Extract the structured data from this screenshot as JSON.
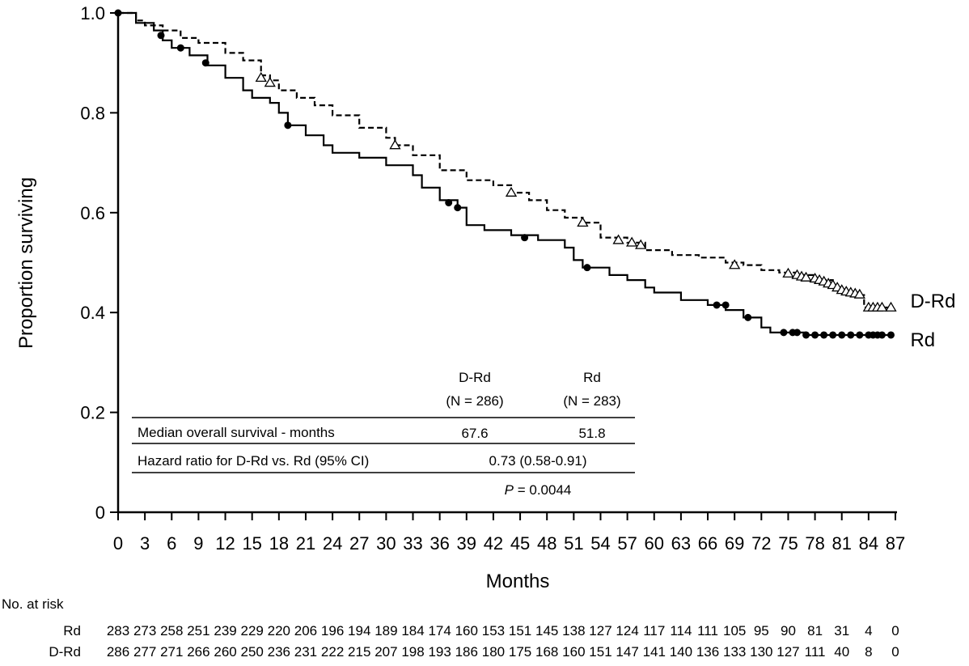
{
  "chart_data": {
    "type": "line",
    "subtype": "kaplan-meier",
    "ylabel": "Proportion surviving",
    "xlabel": "Months",
    "xlim": [
      0,
      87
    ],
    "ylim": [
      0,
      1.0
    ],
    "xticks": [
      "0",
      "3",
      "6",
      "9",
      "12",
      "15",
      "18",
      "21",
      "24",
      "27",
      "30",
      "33",
      "36",
      "39",
      "42",
      "45",
      "48",
      "51",
      "54",
      "57",
      "60",
      "63",
      "66",
      "69",
      "72",
      "75",
      "78",
      "81",
      "84",
      "87"
    ],
    "yticks": [
      "0",
      "0.2",
      "0.4",
      "0.6",
      "0.8",
      "1.0"
    ],
    "grid": false,
    "legend": "inline-right",
    "series": [
      {
        "name": "D-Rd",
        "style": "dashed",
        "marker": "open-triangle",
        "points": [
          [
            0,
            1.0
          ],
          [
            2,
            0.985
          ],
          [
            3,
            0.975
          ],
          [
            5,
            0.965
          ],
          [
            7,
            0.95
          ],
          [
            9,
            0.94
          ],
          [
            12,
            0.92
          ],
          [
            14,
            0.905
          ],
          [
            16,
            0.875
          ],
          [
            17,
            0.865
          ],
          [
            18,
            0.845
          ],
          [
            20,
            0.83
          ],
          [
            22,
            0.815
          ],
          [
            24,
            0.795
          ],
          [
            27,
            0.77
          ],
          [
            30,
            0.75
          ],
          [
            31,
            0.735
          ],
          [
            33,
            0.715
          ],
          [
            36,
            0.685
          ],
          [
            39,
            0.665
          ],
          [
            42,
            0.655
          ],
          [
            44,
            0.64
          ],
          [
            46,
            0.625
          ],
          [
            48,
            0.605
          ],
          [
            50,
            0.59
          ],
          [
            52,
            0.58
          ],
          [
            54,
            0.55
          ],
          [
            57,
            0.54
          ],
          [
            59,
            0.525
          ],
          [
            62,
            0.515
          ],
          [
            65,
            0.51
          ],
          [
            68,
            0.5
          ],
          [
            70,
            0.495
          ],
          [
            72,
            0.485
          ],
          [
            74,
            0.48
          ],
          [
            76,
            0.475
          ],
          [
            78,
            0.465
          ],
          [
            80,
            0.45
          ],
          [
            81,
            0.44
          ],
          [
            83,
            0.435
          ],
          [
            83.5,
            0.41
          ],
          [
            86.5,
            0.41
          ]
        ],
        "censored": [
          [
            16,
            0.87
          ],
          [
            17,
            0.86
          ],
          [
            31,
            0.735
          ],
          [
            44,
            0.64
          ],
          [
            52,
            0.58
          ],
          [
            56,
            0.545
          ],
          [
            57.5,
            0.54
          ],
          [
            58.5,
            0.535
          ],
          [
            69,
            0.495
          ],
          [
            75,
            0.478
          ],
          [
            76,
            0.475
          ],
          [
            76.5,
            0.472
          ],
          [
            77,
            0.47
          ],
          [
            78,
            0.468
          ],
          [
            78.5,
            0.465
          ],
          [
            79,
            0.462
          ],
          [
            79.5,
            0.458
          ],
          [
            80,
            0.455
          ],
          [
            80.5,
            0.45
          ],
          [
            81,
            0.445
          ],
          [
            81.5,
            0.442
          ],
          [
            82,
            0.44
          ],
          [
            82.5,
            0.438
          ],
          [
            83,
            0.436
          ],
          [
            84,
            0.41
          ],
          [
            84.5,
            0.41
          ],
          [
            85,
            0.41
          ],
          [
            85.5,
            0.41
          ],
          [
            86.5,
            0.41
          ]
        ]
      },
      {
        "name": "Rd",
        "style": "solid",
        "marker": "filled-circle",
        "points": [
          [
            0,
            1.0
          ],
          [
            2,
            0.98
          ],
          [
            4,
            0.965
          ],
          [
            5,
            0.945
          ],
          [
            6,
            0.93
          ],
          [
            8,
            0.915
          ],
          [
            10,
            0.895
          ],
          [
            12,
            0.87
          ],
          [
            14,
            0.845
          ],
          [
            15,
            0.83
          ],
          [
            17,
            0.82
          ],
          [
            18,
            0.8
          ],
          [
            19,
            0.775
          ],
          [
            21,
            0.755
          ],
          [
            23,
            0.735
          ],
          [
            24,
            0.72
          ],
          [
            27,
            0.71
          ],
          [
            30,
            0.695
          ],
          [
            33,
            0.675
          ],
          [
            34,
            0.65
          ],
          [
            36,
            0.625
          ],
          [
            38,
            0.61
          ],
          [
            39,
            0.575
          ],
          [
            41,
            0.565
          ],
          [
            44,
            0.555
          ],
          [
            47,
            0.545
          ],
          [
            50,
            0.53
          ],
          [
            51,
            0.505
          ],
          [
            52,
            0.49
          ],
          [
            55,
            0.475
          ],
          [
            57,
            0.465
          ],
          [
            59,
            0.45
          ],
          [
            60,
            0.44
          ],
          [
            63,
            0.425
          ],
          [
            66,
            0.415
          ],
          [
            68,
            0.405
          ],
          [
            70,
            0.39
          ],
          [
            72,
            0.37
          ],
          [
            73,
            0.36
          ],
          [
            77,
            0.355
          ],
          [
            86.5,
            0.355
          ]
        ],
        "censored": [
          [
            0,
            1.0
          ],
          [
            4.8,
            0.955
          ],
          [
            7,
            0.93
          ],
          [
            9.8,
            0.9
          ],
          [
            19,
            0.775
          ],
          [
            37,
            0.62
          ],
          [
            38,
            0.61
          ],
          [
            45.5,
            0.55
          ],
          [
            52.5,
            0.49
          ],
          [
            67,
            0.415
          ],
          [
            68,
            0.415
          ],
          [
            70.5,
            0.39
          ],
          [
            74.5,
            0.36
          ],
          [
            75.5,
            0.36
          ],
          [
            76,
            0.36
          ],
          [
            77,
            0.355
          ],
          [
            78,
            0.355
          ],
          [
            79,
            0.355
          ],
          [
            80,
            0.355
          ],
          [
            81,
            0.355
          ],
          [
            82,
            0.355
          ],
          [
            83,
            0.355
          ],
          [
            84,
            0.355
          ],
          [
            84.5,
            0.355
          ],
          [
            85,
            0.355
          ],
          [
            85.5,
            0.355
          ],
          [
            86.5,
            0.355
          ]
        ]
      }
    ],
    "stats_table": {
      "col1_header": "D-Rd",
      "col1_n": "(N = 286)",
      "col2_header": "Rd",
      "col2_n": "(N = 283)",
      "row1_label": "Median overall survival - months",
      "row1_val1": "67.6",
      "row1_val2": "51.8",
      "row2_label": "Hazard ratio for D-Rd vs. Rd (95% CI)",
      "row2_val": "0.73 (0.58-0.91)",
      "p_prefix": "P",
      "p_value": " = 0.0044"
    },
    "at_risk": {
      "title": "No. at risk",
      "rows": [
        {
          "label": "Rd",
          "values": [
            "283",
            "273",
            "258",
            "251",
            "239",
            "229",
            "220",
            "206",
            "196",
            "194",
            "189",
            "184",
            "174",
            "160",
            "153",
            "151",
            "145",
            "138",
            "127",
            "124",
            "117",
            "114",
            "111",
            "105",
            "95",
            "90",
            "81",
            "31",
            "4",
            "0"
          ]
        },
        {
          "label": "D-Rd",
          "values": [
            "286",
            "277",
            "271",
            "266",
            "260",
            "250",
            "236",
            "231",
            "222",
            "215",
            "207",
            "198",
            "193",
            "186",
            "180",
            "175",
            "168",
            "160",
            "151",
            "147",
            "141",
            "140",
            "136",
            "133",
            "130",
            "127",
            "111",
            "40",
            "8",
            "0"
          ]
        }
      ]
    }
  }
}
